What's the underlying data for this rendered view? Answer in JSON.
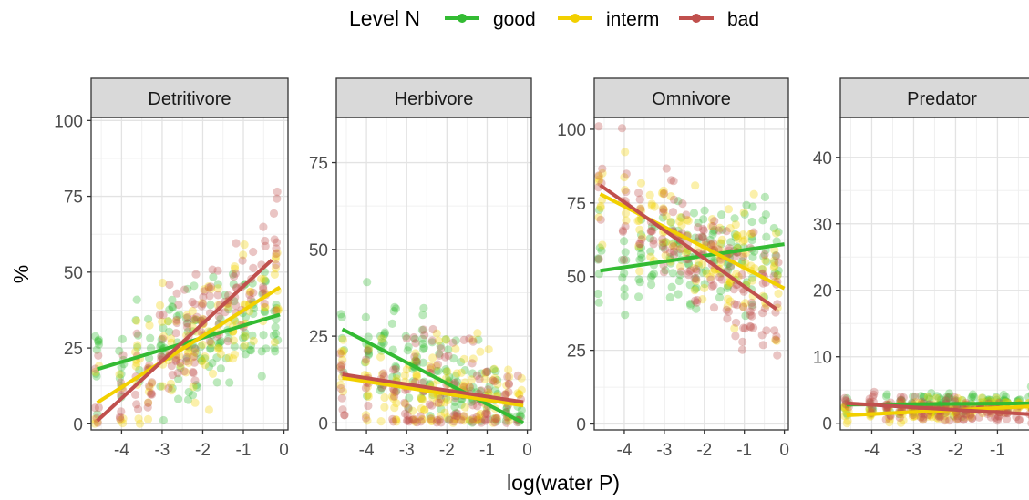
{
  "chart_data": {
    "type": "scatter",
    "legend": {
      "title": "Level N",
      "placement": "top",
      "entries": [
        {
          "key": "good",
          "label": "good",
          "color": "#33bb33"
        },
        {
          "key": "interm",
          "label": "interm",
          "color": "#f2d000"
        },
        {
          "key": "bad",
          "label": "bad",
          "color": "#c0504d"
        }
      ]
    },
    "xlabel": "log(water P)",
    "ylabel": "%",
    "grid": true,
    "x_ticks": [
      -4,
      -3,
      -2,
      -1,
      0
    ],
    "xlim": [
      -4.75,
      0.1
    ],
    "panels": [
      {
        "name": "Detritivore",
        "ylim": [
          -2,
          101
        ],
        "y_ticks": [
          0,
          25,
          50,
          75,
          100
        ],
        "lines": [
          {
            "series": "good",
            "x": [
              -4.6,
              -0.1
            ],
            "y": [
              18,
              36
            ]
          },
          {
            "series": "interm",
            "x": [
              -4.6,
              -0.1
            ],
            "y": [
              7,
              45
            ]
          },
          {
            "series": "bad",
            "x": [
              -4.6,
              -0.3
            ],
            "y": [
              1,
              54
            ]
          }
        ]
      },
      {
        "name": "Herbivore",
        "ylim": [
          -2,
          88
        ],
        "y_ticks": [
          0,
          25,
          50,
          75
        ],
        "lines": [
          {
            "series": "good",
            "x": [
              -4.6,
              -0.1
            ],
            "y": [
              27,
              0
            ]
          },
          {
            "series": "interm",
            "x": [
              -4.6,
              -0.1
            ],
            "y": [
              13,
              5
            ]
          },
          {
            "series": "bad",
            "x": [
              -4.6,
              -0.1
            ],
            "y": [
              14,
              6
            ]
          }
        ]
      },
      {
        "name": "Omnivore",
        "ylim": [
          -2,
          104
        ],
        "y_ticks": [
          0,
          25,
          50,
          75,
          100
        ],
        "lines": [
          {
            "series": "good",
            "x": [
              -4.6,
              0.0
            ],
            "y": [
              52,
              61
            ]
          },
          {
            "series": "interm",
            "x": [
              -4.6,
              0.0
            ],
            "y": [
              78,
              46
            ]
          },
          {
            "series": "bad",
            "x": [
              -4.6,
              -0.2
            ],
            "y": [
              81,
              39
            ]
          }
        ]
      },
      {
        "name": "Predator",
        "ylim": [
          -1,
          46
        ],
        "y_ticks": [
          0,
          10,
          20,
          30,
          40
        ],
        "lines": [
          {
            "series": "good",
            "x": [
              -4.6,
              0.0
            ],
            "y": [
              2.8,
              3.0
            ]
          },
          {
            "series": "interm",
            "x": [
              -4.6,
              0.0
            ],
            "y": [
              1.2,
              2.6
            ]
          },
          {
            "series": "bad",
            "x": [
              -4.6,
              -0.1
            ],
            "y": [
              3.0,
              1.3
            ]
          }
        ]
      }
    ]
  }
}
